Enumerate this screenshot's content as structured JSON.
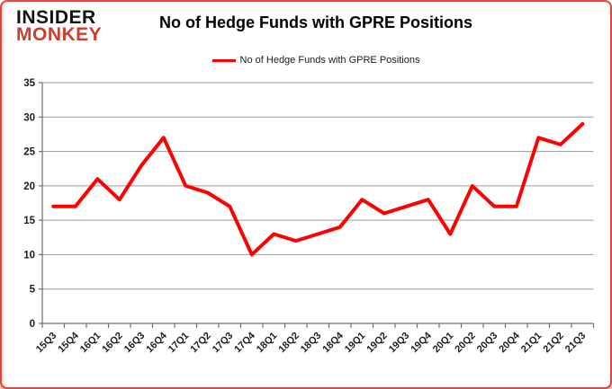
{
  "branding": {
    "logo_line1": "INSIDER",
    "logo_line2": "MONKEY",
    "logo_color_line1": "#141414",
    "logo_color_line2": "#c8402f"
  },
  "header": {
    "title": "No of Hedge Funds with GPRE Positions"
  },
  "legend": {
    "label": "No of Hedge Funds with GPRE Positions",
    "swatch_color": "#ff0000"
  },
  "chart_data": {
    "type": "line",
    "title": "No of Hedge Funds with GPRE Positions",
    "series": [
      {
        "name": "No of Hedge Funds with GPRE Positions",
        "values": [
          17,
          17,
          21,
          18,
          23,
          27,
          20,
          19,
          17,
          10,
          13,
          12,
          13,
          14,
          18,
          16,
          17,
          18,
          13,
          20,
          17,
          17,
          27,
          26,
          29
        ]
      }
    ],
    "categories": [
      "15Q3",
      "15Q4",
      "16Q1",
      "16Q2",
      "16Q3",
      "16Q4",
      "17Q1",
      "17Q2",
      "17Q3",
      "17Q4",
      "18Q1",
      "18Q2",
      "18Q3",
      "18Q4",
      "19Q1",
      "19Q2",
      "19Q3",
      "19Q4",
      "20Q1",
      "20Q2",
      "20Q3",
      "20Q4",
      "21Q1",
      "21Q2",
      "21Q3"
    ],
    "xlabel": "",
    "ylabel": "",
    "ylim": [
      0,
      35
    ],
    "yticks": [
      0,
      5,
      10,
      15,
      20,
      25,
      30,
      35
    ],
    "grid": true,
    "legend_position": "top",
    "line_color": "#ff0000",
    "gridline_color": "#9b9b9b",
    "axis_color": "#6f6f6f",
    "label_color": "#1c1c1c"
  }
}
